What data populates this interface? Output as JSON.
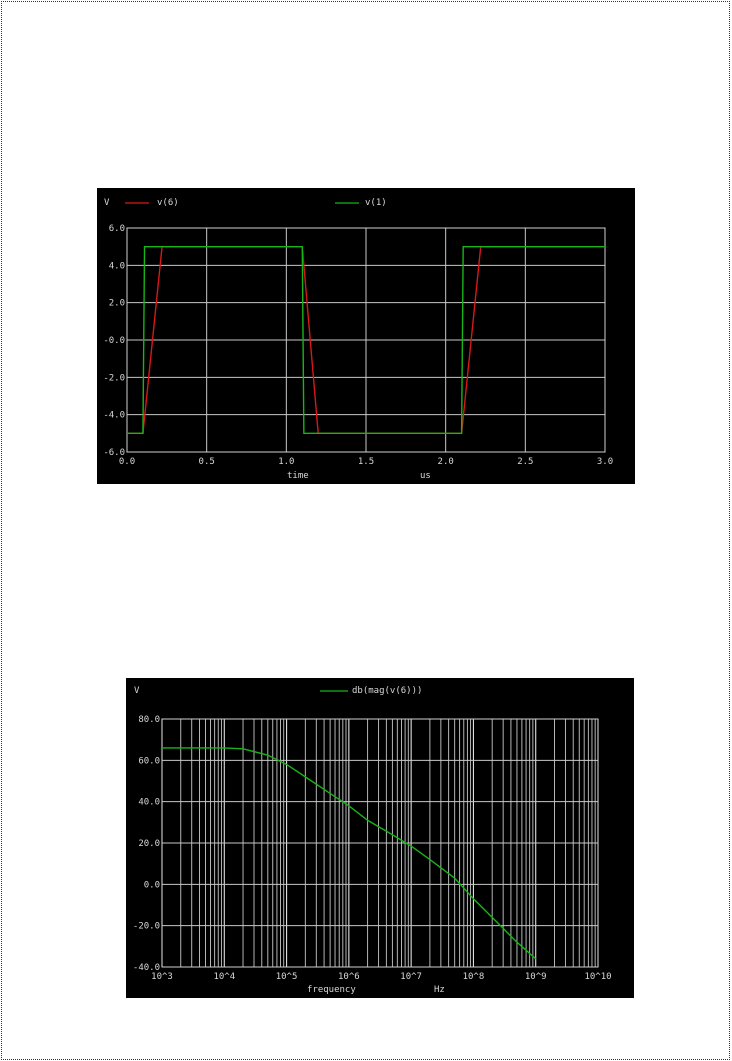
{
  "charts": {
    "transient": {
      "chart_data": {
        "type": "line",
        "y_unit_label": "V",
        "xlabel": "time",
        "x_unit_label": "us",
        "xlim": [
          0,
          3.0
        ],
        "ylim": [
          -6.0,
          6.0
        ],
        "x_ticks": [
          0.0,
          0.5,
          1.0,
          1.5,
          2.0,
          2.5,
          3.0
        ],
        "x_tick_labels": [
          "0.0",
          "0.5",
          "1.0",
          "1.5",
          "2.0",
          "2.5",
          "3.0"
        ],
        "y_ticks": [
          6.0,
          4.0,
          2.0,
          0.0,
          -2.0,
          -4.0,
          -6.0
        ],
        "y_tick_labels": [
          "6.0",
          "4.0",
          "2.0",
          "-0.0",
          "-2.0",
          "-4.0",
          "-6.0"
        ],
        "grid": true,
        "legend_position": "top",
        "series": [
          {
            "name": "v(6)",
            "color": "#d81818",
            "x": [
              0.0,
              0.1,
              0.22,
              1.1,
              1.2,
              2.1,
              2.22,
              3.0
            ],
            "y": [
              -5.0,
              -5.0,
              5.0,
              5.0,
              -5.0,
              -5.0,
              5.0,
              5.0
            ]
          },
          {
            "name": "v(1)",
            "color": "#18b418",
            "x": [
              0.0,
              0.1,
              0.11,
              1.1,
              1.11,
              2.1,
              2.11,
              3.0
            ],
            "y": [
              -5.0,
              -5.0,
              5.0,
              5.0,
              -5.0,
              -5.0,
              5.0,
              5.0
            ]
          }
        ]
      }
    },
    "ac": {
      "chart_data": {
        "type": "line",
        "y_unit_label": "V",
        "xlabel": "frequency",
        "x_unit_label": "Hz",
        "x_scale": "log",
        "xlim": [
          1000,
          10000000000
        ],
        "ylim": [
          -40.0,
          80.0
        ],
        "x_ticks": [
          1000,
          10000,
          100000,
          1000000,
          10000000,
          100000000,
          1000000000,
          10000000000
        ],
        "x_tick_labels": [
          "10^3",
          "10^4",
          "10^5",
          "10^6",
          "10^7",
          "10^8",
          "10^9",
          "10^10"
        ],
        "y_ticks": [
          80.0,
          60.0,
          40.0,
          20.0,
          0.0,
          -20.0,
          -40.0
        ],
        "y_tick_labels": [
          "80.0",
          "60.0",
          "40.0",
          "20.0",
          "0.0",
          "-20.0",
          "-40.0"
        ],
        "grid": true,
        "legend_position": "top",
        "series": [
          {
            "name": "db(mag(v(6)))",
            "color": "#18b418",
            "x": [
              1000,
              10000,
              20000,
              50000,
              100000,
              200000,
              500000,
              1000000,
              2000000,
              5000000,
              10000000,
              20000000,
              50000000,
              100000000,
              200000000,
              500000000,
              1000000000
            ],
            "y": [
              66.0,
              66.0,
              65.6,
              62.5,
              58.0,
              52.0,
              44.0,
              38.0,
              31.0,
              24.0,
              18.5,
              12.0,
              3.0,
              -7.0,
              -16.0,
              -28.0,
              -36.0
            ]
          }
        ]
      }
    }
  }
}
